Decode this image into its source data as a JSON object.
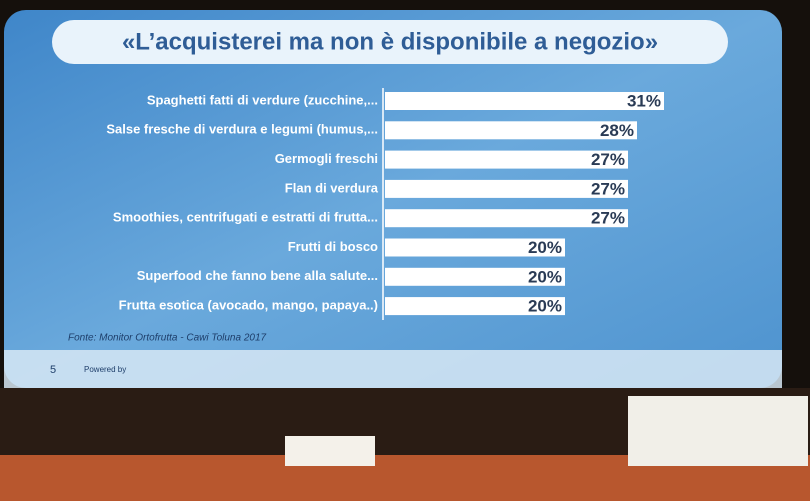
{
  "chart_data": {
    "type": "barh",
    "title": "«L’acquisterei ma non è disponibile a negozio»",
    "categories": [
      "Spaghetti fatti di verdure (zucchine,...",
      "Salse fresche di verdura e legumi (humus,...",
      "Germogli freschi",
      "Flan di verdura",
      "Smoothies, centrifugati e estratti di frutta...",
      "Frutti di bosco",
      "Superfood che fanno bene alla salute...",
      "Frutta esotica (avocado, mango, papaya..)"
    ],
    "values": [
      31,
      28,
      27,
      27,
      27,
      20,
      20,
      20
    ],
    "value_labels": [
      "31%",
      "28%",
      "27%",
      "27%",
      "27%",
      "20%",
      "20%",
      "20%"
    ],
    "color": "#ffffff",
    "source": "Fonte: Monitor Ortofrutta - Cawi Toluna 2017",
    "page_number": "5",
    "footer": "Powered by"
  }
}
